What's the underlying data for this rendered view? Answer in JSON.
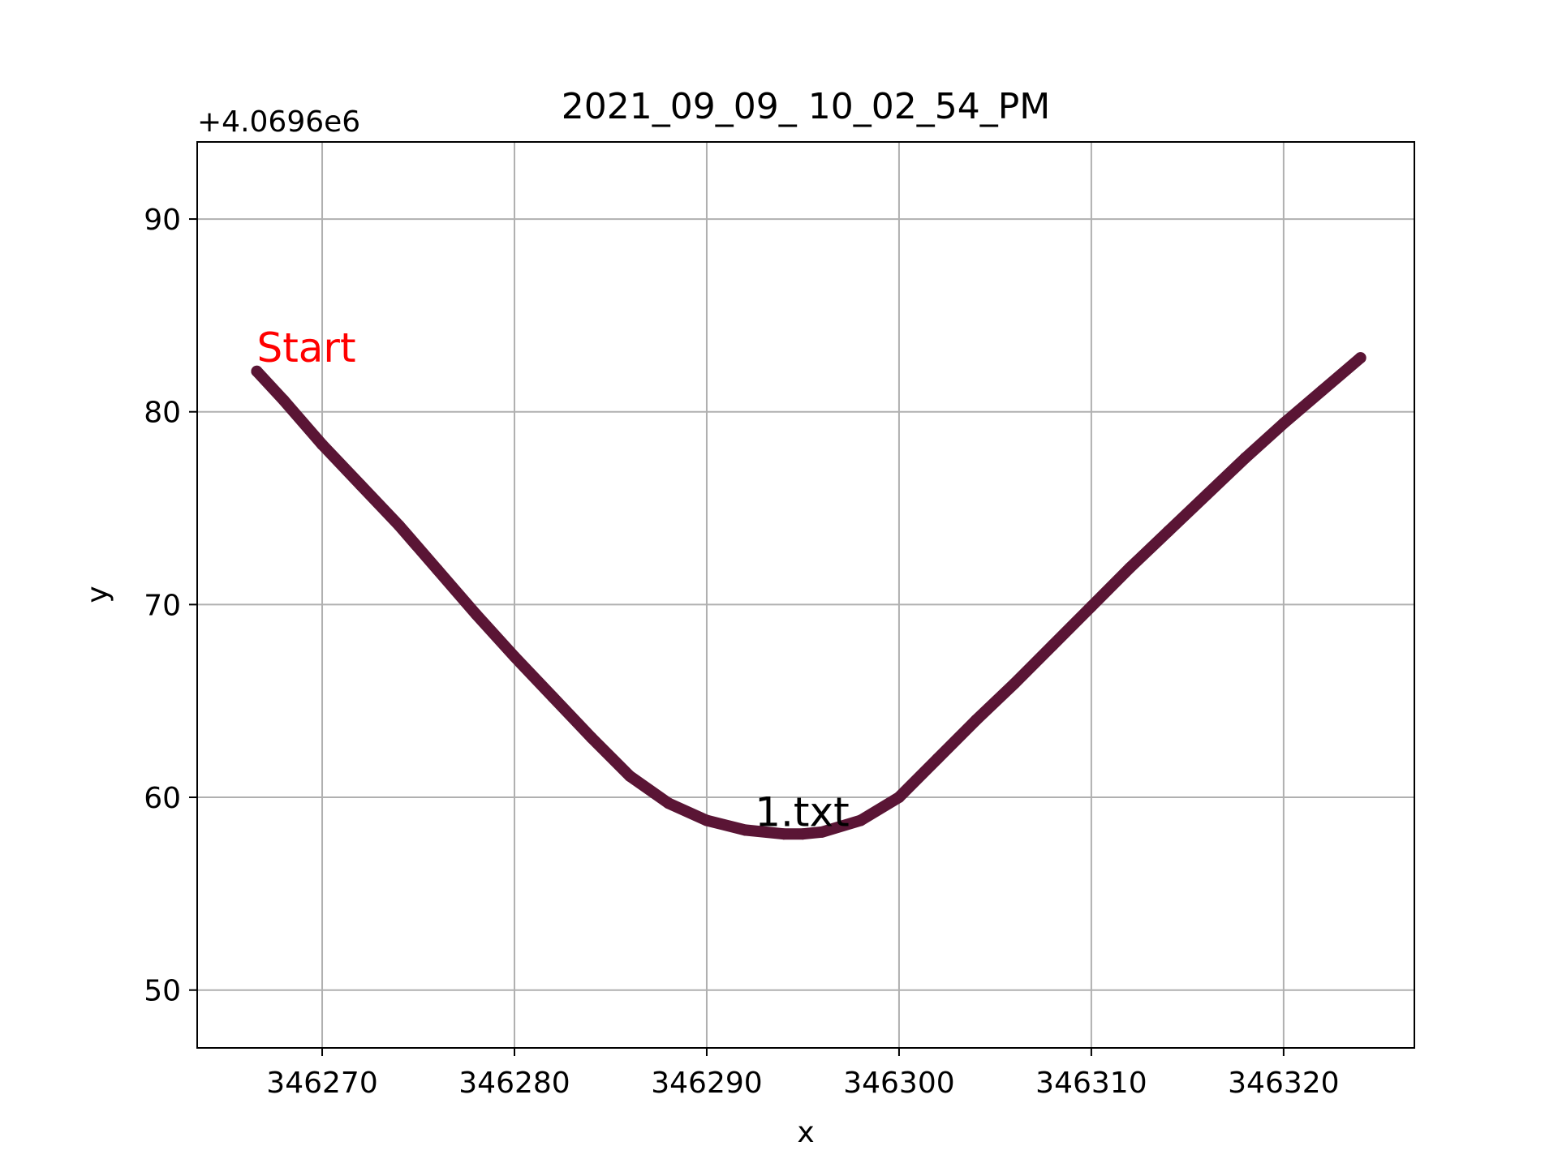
{
  "chart_data": {
    "type": "line",
    "title": "2021_09_09_ 10_02_54_PM",
    "xlabel": "x",
    "ylabel": "y",
    "y_offset_label": "+4.0696e6",
    "xlim": [
      346263.5,
      346326.8
    ],
    "ylim": [
      47,
      94
    ],
    "x_ticks": [
      346270,
      346280,
      346290,
      346300,
      346310,
      346320
    ],
    "x_tick_labels": [
      "346270",
      "346280",
      "346290",
      "346300",
      "346310",
      "346320"
    ],
    "y_ticks": [
      50,
      60,
      70,
      80,
      90
    ],
    "y_tick_labels": [
      "50",
      "60",
      "70",
      "80",
      "90"
    ],
    "grid": true,
    "series": [
      {
        "color": "#5a1535",
        "x": [
          346266.6,
          346268.0,
          346270.0,
          346272.0,
          346274.0,
          346276.0,
          346278.0,
          346280.0,
          346282.0,
          346284.0,
          346286.0,
          346288.0,
          346290.0,
          346292.0,
          346294.0,
          346295.0,
          346296.0,
          346298.0,
          346300.0,
          346302.0,
          346304.0,
          346306.0,
          346308.0,
          346310.0,
          346312.0,
          346314.0,
          346316.0,
          346318.0,
          346320.0,
          346322.0,
          346324.0
        ],
        "y": [
          82.1,
          80.6,
          78.3,
          76.2,
          74.1,
          71.8,
          69.5,
          67.3,
          65.2,
          63.1,
          61.1,
          59.7,
          58.8,
          58.3,
          58.1,
          58.1,
          58.2,
          58.8,
          60.0,
          62.0,
          64.0,
          65.9,
          67.9,
          69.9,
          71.9,
          73.8,
          75.7,
          77.6,
          79.4,
          81.1,
          82.8
        ]
      }
    ],
    "annotations": [
      {
        "text": "Start",
        "x": 346266.6,
        "y": 82.6,
        "color": "#ff0000"
      },
      {
        "text": "1.txt",
        "x": 346292.5,
        "y": 58.5,
        "color": "#000000"
      }
    ]
  }
}
